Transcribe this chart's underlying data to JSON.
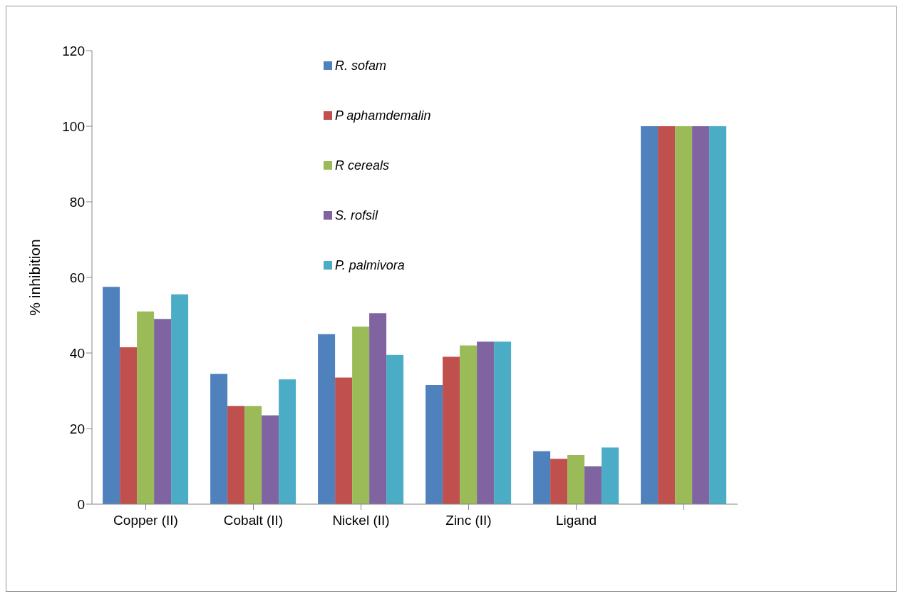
{
  "chart_data": {
    "type": "bar",
    "ylabel": "% inhibition",
    "categories": [
      "Copper (II)",
      "Cobalt (II)",
      "Nickel (II)",
      "Zinc (II)",
      "Ligand",
      null
    ],
    "series": [
      {
        "name": "R. sofam",
        "color": "#4f81bd",
        "values": [
          57.5,
          34.5,
          45,
          31.5,
          14,
          100
        ]
      },
      {
        "name": "P aphamdemalin",
        "color": "#c0504d",
        "values": [
          41.5,
          26,
          33.5,
          39,
          12,
          100
        ]
      },
      {
        "name": "R cereals",
        "color": "#9bbb59",
        "values": [
          51,
          26,
          47,
          42,
          13,
          100
        ]
      },
      {
        "name": "S. rofsil",
        "color": "#8064a2",
        "values": [
          49,
          23.5,
          50.5,
          43,
          10,
          100
        ]
      },
      {
        "name": "P. palmivora",
        "color": "#4bacc6",
        "values": [
          55.5,
          33,
          39.5,
          43,
          15,
          100
        ]
      }
    ],
    "ylim": [
      0,
      120
    ],
    "yticks": [
      0,
      20,
      40,
      60,
      80,
      100,
      120
    ],
    "grid": false,
    "legend": "top"
  }
}
